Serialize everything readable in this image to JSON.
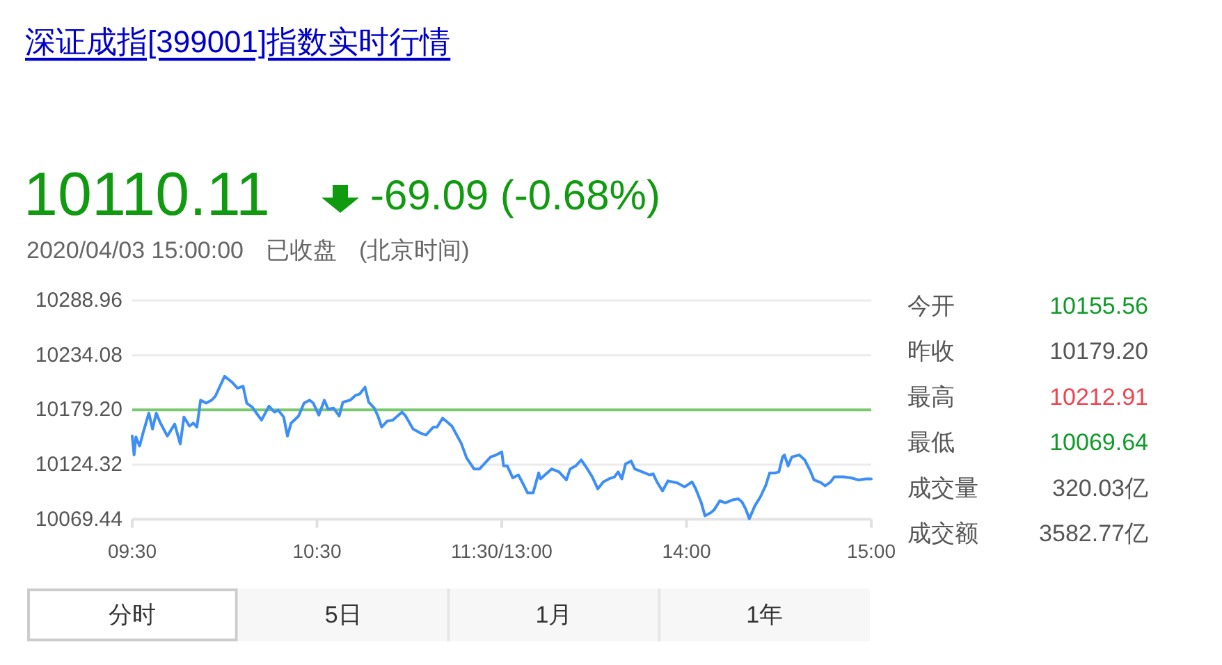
{
  "chart_data": [
    {
      "type": "other",
      "title": "深证成指[399001]指数实时行情",
      "annotations": [
        "10110.11",
        "-69.09 (-0.68%)",
        "2020/04/03 15:00:00",
        "已收盘",
        "(北京时间)"
      ]
    },
    {
      "type": "line",
      "color": "#3d8ef5",
      "x": [
        9.5,
        9.51,
        9.52,
        9.54,
        9.56,
        9.59,
        9.61,
        9.63,
        9.65,
        9.69,
        9.73,
        9.76,
        9.78,
        9.81,
        9.83,
        9.85,
        9.87,
        9.9,
        9.93,
        9.95,
        10.0,
        10.04,
        10.07,
        10.1,
        10.12,
        10.15,
        10.18,
        10.2,
        10.24,
        10.27,
        10.29,
        10.32,
        10.34,
        10.36,
        10.4,
        10.43,
        10.46,
        10.48,
        10.51,
        10.54,
        10.56,
        10.59,
        10.62,
        10.64,
        10.68,
        10.71,
        10.73,
        10.76,
        10.78,
        10.81,
        10.83,
        10.85,
        10.88,
        10.91,
        10.96,
        10.98,
        11.02,
        11.06,
        11.09,
        11.13,
        11.15,
        11.18,
        11.23,
        11.28,
        11.31,
        11.35,
        11.38,
        11.44,
        11.47,
        11.5
      ],
      "values": [
        10153,
        10134,
        10152,
        10143,
        10157,
        10176,
        10160,
        10176,
        10167,
        10153,
        10165,
        10145,
        10172,
        10163,
        10166,
        10162,
        10189,
        10186,
        10189,
        10193,
        10213,
        10207,
        10201,
        10203,
        10186,
        10182,
        10174,
        10169,
        10183,
        10177,
        10179,
        10172,
        10153,
        10166,
        10173,
        10186,
        10189,
        10186,
        10174,
        10189,
        10180,
        10181,
        10173,
        10187,
        10189,
        10194,
        10195,
        10202,
        10187,
        10181,
        10173,
        10162,
        10168,
        10169,
        10177,
        10173,
        10160,
        10156,
        10154,
        10162,
        10162,
        10171,
        10163,
        10146,
        10131,
        10120,
        10120,
        10132,
        10134,
        10137
      ],
      "xlim": [
        9.5,
        11.5
      ],
      "xticks": [
        {
          "value": 9.5,
          "label": "09:30"
        },
        {
          "value": 10.5,
          "label": "10:30"
        },
        {
          "value": 11.5,
          "label": "11:30/13:00"
        }
      ],
      "ylim": [
        10069.44,
        10288.96
      ],
      "yticks": [
        10069.44,
        10124.32,
        {
          "value": 10179.2,
          "label": "10179.20"
        },
        10234.08,
        10288.96
      ],
      "ref_lines": [
        {
          "axis": "y",
          "value": 10179.2,
          "color": "#7bc96f"
        }
      ],
      "grid": "y"
    },
    {
      "type": "line",
      "color": "#3d8ef5",
      "x": [
        13.0,
        13.01,
        13.03,
        13.06,
        13.09,
        13.11,
        13.14,
        13.17,
        13.2,
        13.21,
        13.24,
        13.27,
        13.31,
        13.35,
        13.37,
        13.4,
        13.43,
        13.46,
        13.49,
        13.52,
        13.55,
        13.58,
        13.61,
        13.63,
        13.65,
        13.67,
        13.7,
        13.72,
        13.76,
        13.8,
        13.82,
        13.84,
        13.87,
        13.9,
        13.95,
        13.99,
        14.03,
        14.05,
        14.08,
        14.1,
        14.13,
        14.15,
        14.18,
        14.21,
        14.25,
        14.28,
        14.3,
        14.32,
        14.34,
        14.37,
        14.4,
        14.43,
        14.45,
        14.48,
        14.5,
        14.52,
        14.53,
        14.55,
        14.57,
        14.61,
        14.64,
        14.67,
        14.69,
        14.73,
        14.75,
        14.78,
        14.8,
        14.85,
        14.89,
        14.93,
        14.97,
        15
      ],
      "values": [
        10137,
        10123,
        10123,
        10111,
        10114,
        10107,
        10096,
        10096,
        10116,
        10110,
        10115,
        10120,
        10117,
        10109,
        10120,
        10123,
        10129,
        10121,
        10112,
        10100,
        10107,
        10110,
        10112,
        10117,
        10110,
        10125,
        10128,
        10120,
        10117,
        10114,
        10115,
        10107,
        10098,
        10108,
        10106,
        10102,
        10107,
        10100,
        10086,
        10073,
        10076,
        10079,
        10088,
        10086,
        10089,
        10090,
        10087,
        10080,
        10070,
        10083,
        10092,
        10104,
        10116,
        10116,
        10117,
        10132,
        10134,
        10123,
        10132,
        10134,
        10129,
        10118,
        10109,
        10106,
        10103,
        10107,
        10112,
        10112,
        10111,
        10109,
        10110,
        10110
      ],
      "xlim": [
        13,
        15
      ],
      "xticks": [
        {
          "value": 13,
          "label": null
        },
        {
          "value": 14,
          "label": "14:00"
        },
        {
          "value": 15,
          "label": "15:00"
        }
      ],
      "ylim": [
        10069.44,
        10288.96
      ],
      "yticks": [
        10069.44,
        10124.32,
        10179.2,
        10234.08,
        10288.96
      ],
      "ref_lines": [
        {
          "axis": "y",
          "value": 10179.2,
          "color": "#7bc96f"
        }
      ],
      "grid": "y",
      "tick_labels": "x"
    },
    {
      "type": "other",
      "categories": [
        "今开",
        "昨收",
        "最高",
        "最低",
        "成交量",
        "成交额"
      ],
      "value_labels": [
        "10155.56",
        "10179.20",
        "10212.91",
        "10069.64",
        "320.03亿",
        "3582.77亿"
      ],
      "colors": [
        "#109a2a",
        "#555555",
        "#f2434f",
        "#109a2a",
        "#555555",
        "#555555"
      ]
    },
    {
      "type": "other",
      "categories": [
        "分时",
        "5日",
        "1月",
        "1年"
      ]
    }
  ]
}
